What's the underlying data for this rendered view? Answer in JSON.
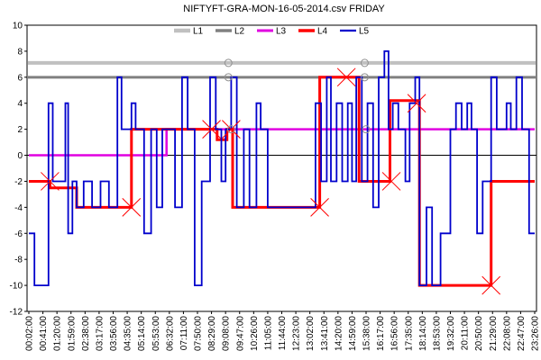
{
  "chart_data": {
    "type": "line",
    "title": "NIFTYFT-GRA-MON-16-05-2014.csv  FRIDAY",
    "xlabel": "",
    "ylabel": "",
    "ylim": [
      -12,
      10
    ],
    "yticks": [
      -12,
      -10,
      -8,
      -6,
      -4,
      -2,
      0,
      2,
      4,
      6,
      8,
      10
    ],
    "x_ticks": [
      "00:02:00",
      "00:41:00",
      "01:20:00",
      "01:59:00",
      "02:38:00",
      "03:17:00",
      "03:56:00",
      "04:35:00",
      "05:14:00",
      "05:53:00",
      "06:32:00",
      "07:11:00",
      "07:50:00",
      "08:29:00",
      "09:08:00",
      "09:47:00",
      "10:26:00",
      "11:05:00",
      "11:44:00",
      "12:23:00",
      "13:02:00",
      "13:41:00",
      "14:20:00",
      "14:59:00",
      "15:38:00",
      "16:17:00",
      "16:56:00",
      "17:35:00",
      "18:14:00",
      "18:53:00",
      "19:32:00",
      "20:11:00",
      "20:50:00",
      "21:29:00",
      "22:08:00",
      "22:47:00",
      "23:26:00"
    ],
    "x_range": [
      0,
      36
    ],
    "grid": false,
    "legend_position": "top-center",
    "series": [
      {
        "name": "L1",
        "color": "#c0c0c0",
        "style": "hline",
        "y": 7.1
      },
      {
        "name": "L2",
        "color": "#808080",
        "style": "hline",
        "y": 6.0
      },
      {
        "name": "L3",
        "color": "#e000e0",
        "style": "step",
        "points": [
          [
            0,
            0
          ],
          [
            9.8,
            0
          ],
          [
            9.8,
            2
          ],
          [
            36,
            2
          ]
        ]
      },
      {
        "name": "L4",
        "color": "#ff0000",
        "style": "step",
        "points": [
          [
            0,
            -2
          ],
          [
            1.5,
            -2
          ],
          [
            1.5,
            -2.5
          ],
          [
            3.4,
            -2.5
          ],
          [
            3.4,
            -4
          ],
          [
            7.3,
            -4
          ],
          [
            7.3,
            2
          ],
          [
            13.4,
            2
          ],
          [
            13.4,
            1.2
          ],
          [
            14.1,
            1.2
          ],
          [
            14.1,
            2
          ],
          [
            14.5,
            2
          ],
          [
            14.5,
            -4
          ],
          [
            20.7,
            -4
          ],
          [
            20.7,
            -3
          ],
          [
            20.7,
            6
          ],
          [
            23.5,
            6
          ],
          [
            23.5,
            -2
          ],
          [
            25.7,
            -2
          ],
          [
            25.7,
            4.2
          ],
          [
            27.8,
            4.2
          ],
          [
            27.8,
            -10
          ],
          [
            32.9,
            -10
          ],
          [
            32.9,
            -2
          ],
          [
            36,
            -2
          ]
        ]
      },
      {
        "name": "L5",
        "color": "#0000cc",
        "style": "step",
        "points": [
          [
            0,
            -6
          ],
          [
            0.4,
            -6
          ],
          [
            0.4,
            -10
          ],
          [
            1.4,
            -10
          ],
          [
            1.4,
            4
          ],
          [
            1.7,
            4
          ],
          [
            1.7,
            -2
          ],
          [
            2.6,
            -2
          ],
          [
            2.6,
            4
          ],
          [
            2.8,
            4
          ],
          [
            2.8,
            -6
          ],
          [
            3.1,
            -6
          ],
          [
            3.1,
            -2
          ],
          [
            3.4,
            -2
          ],
          [
            3.4,
            -4
          ],
          [
            3.9,
            -4
          ],
          [
            3.9,
            -2
          ],
          [
            4.5,
            -2
          ],
          [
            4.5,
            -4
          ],
          [
            5.1,
            -4
          ],
          [
            5.1,
            -2
          ],
          [
            5.7,
            -2
          ],
          [
            5.7,
            -4
          ],
          [
            6.3,
            -4
          ],
          [
            6.3,
            6
          ],
          [
            6.6,
            6
          ],
          [
            6.6,
            2
          ],
          [
            7.3,
            2
          ],
          [
            7.3,
            4
          ],
          [
            7.6,
            4
          ],
          [
            7.6,
            2
          ],
          [
            8.2,
            2
          ],
          [
            8.2,
            -6
          ],
          [
            8.7,
            -6
          ],
          [
            8.7,
            2
          ],
          [
            9.1,
            2
          ],
          [
            9.1,
            -4
          ],
          [
            9.5,
            -4
          ],
          [
            9.5,
            2
          ],
          [
            10.4,
            2
          ],
          [
            10.4,
            -4
          ],
          [
            10.9,
            -4
          ],
          [
            10.9,
            6
          ],
          [
            11.3,
            6
          ],
          [
            11.3,
            2
          ],
          [
            11.8,
            2
          ],
          [
            11.8,
            -10
          ],
          [
            12.3,
            -10
          ],
          [
            12.3,
            -2
          ],
          [
            12.9,
            -2
          ],
          [
            12.9,
            6
          ],
          [
            13.3,
            6
          ],
          [
            13.3,
            2
          ],
          [
            13.7,
            2
          ],
          [
            13.7,
            -2
          ],
          [
            14.0,
            -2
          ],
          [
            14.0,
            2
          ],
          [
            14.4,
            2
          ],
          [
            14.4,
            6
          ],
          [
            14.8,
            6
          ],
          [
            14.8,
            -4
          ],
          [
            15.3,
            -4
          ],
          [
            15.3,
            2
          ],
          [
            15.7,
            2
          ],
          [
            15.7,
            -4
          ],
          [
            16.2,
            -4
          ],
          [
            16.2,
            4
          ],
          [
            16.5,
            4
          ],
          [
            16.5,
            2
          ],
          [
            17.0,
            2
          ],
          [
            17.0,
            -4
          ],
          [
            20.4,
            -4
          ],
          [
            20.4,
            4
          ],
          [
            20.8,
            4
          ],
          [
            20.8,
            -2
          ],
          [
            21.2,
            -2
          ],
          [
            21.2,
            6
          ],
          [
            21.5,
            6
          ],
          [
            21.5,
            -2
          ],
          [
            21.9,
            -2
          ],
          [
            21.9,
            4
          ],
          [
            22.3,
            4
          ],
          [
            22.3,
            -2
          ],
          [
            22.7,
            -2
          ],
          [
            22.7,
            4
          ],
          [
            23.0,
            4
          ],
          [
            23.0,
            -2
          ],
          [
            23.3,
            -2
          ],
          [
            23.3,
            6
          ],
          [
            23.7,
            6
          ],
          [
            23.7,
            -2
          ],
          [
            24.1,
            -2
          ],
          [
            24.1,
            4
          ],
          [
            24.5,
            4
          ],
          [
            24.5,
            -4
          ],
          [
            24.9,
            -4
          ],
          [
            24.9,
            6
          ],
          [
            25.3,
            6
          ],
          [
            25.3,
            8
          ],
          [
            25.6,
            8
          ],
          [
            25.6,
            2
          ],
          [
            25.9,
            2
          ],
          [
            25.9,
            4
          ],
          [
            26.3,
            4
          ],
          [
            26.3,
            2
          ],
          [
            26.8,
            2
          ],
          [
            26.8,
            -2
          ],
          [
            27.1,
            -2
          ],
          [
            27.1,
            4
          ],
          [
            27.5,
            4
          ],
          [
            27.5,
            6
          ],
          [
            27.8,
            6
          ],
          [
            27.8,
            -10
          ],
          [
            28.3,
            -10
          ],
          [
            28.3,
            -4
          ],
          [
            28.7,
            -4
          ],
          [
            28.7,
            -10
          ],
          [
            29.3,
            -10
          ],
          [
            29.3,
            -6
          ],
          [
            30.0,
            -6
          ],
          [
            30.0,
            2
          ],
          [
            30.4,
            2
          ],
          [
            30.4,
            4
          ],
          [
            30.8,
            4
          ],
          [
            30.8,
            2
          ],
          [
            31.2,
            2
          ],
          [
            31.2,
            4
          ],
          [
            31.5,
            4
          ],
          [
            31.5,
            2
          ],
          [
            31.9,
            2
          ],
          [
            31.9,
            -6
          ],
          [
            32.3,
            -6
          ],
          [
            32.3,
            -2
          ],
          [
            32.9,
            -2
          ],
          [
            32.9,
            6
          ],
          [
            33.3,
            6
          ],
          [
            33.3,
            2
          ],
          [
            34.0,
            2
          ],
          [
            34.0,
            4
          ],
          [
            34.3,
            4
          ],
          [
            34.3,
            2
          ],
          [
            34.7,
            2
          ],
          [
            34.7,
            6
          ],
          [
            35.1,
            6
          ],
          [
            35.1,
            2
          ],
          [
            35.6,
            2
          ],
          [
            35.6,
            -6
          ],
          [
            36,
            -6
          ]
        ]
      }
    ],
    "markers": [
      {
        "type": "x",
        "x": 1.5,
        "y": -2
      },
      {
        "type": "x",
        "x": 7.3,
        "y": -4
      },
      {
        "type": "x",
        "x": 13.0,
        "y": 2
      },
      {
        "type": "x",
        "x": 14.4,
        "y": 2
      },
      {
        "type": "x",
        "x": 20.7,
        "y": -4
      },
      {
        "type": "x",
        "x": 22.6,
        "y": 6
      },
      {
        "type": "x",
        "x": 25.8,
        "y": -2
      },
      {
        "type": "x",
        "x": 27.6,
        "y": 4
      },
      {
        "type": "x",
        "x": 32.9,
        "y": -10
      },
      {
        "type": "circle",
        "x": 14.2,
        "y": 7.1
      },
      {
        "type": "circle",
        "x": 14.2,
        "y": 6
      },
      {
        "type": "circle",
        "x": 23.9,
        "y": 7.1
      },
      {
        "type": "circle",
        "x": 23.9,
        "y": 6
      },
      {
        "type": "circle",
        "x": 24.0,
        "y": 2
      },
      {
        "type": "circle",
        "x": 14.4,
        "y": 2
      }
    ]
  }
}
